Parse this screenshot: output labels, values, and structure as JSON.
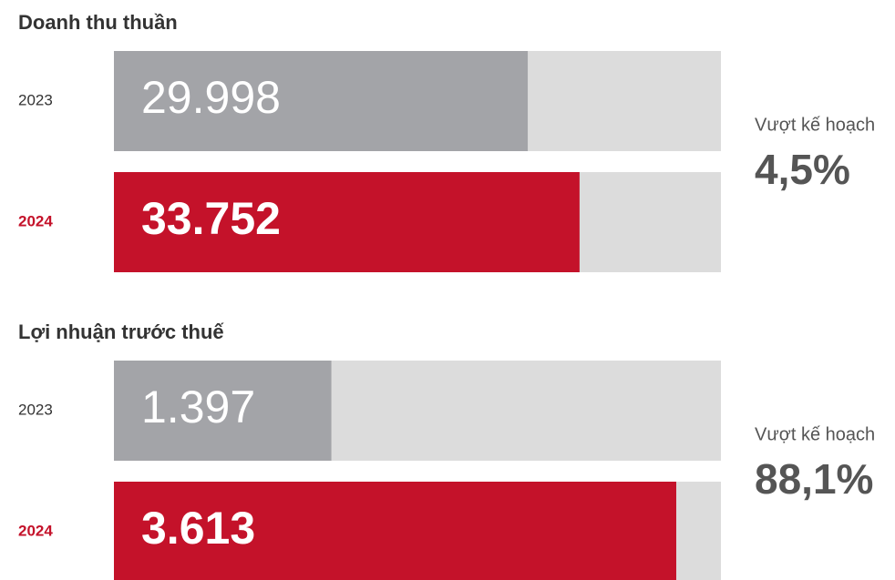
{
  "chart_data": [
    {
      "type": "bar",
      "orientation": "horizontal",
      "title": "Doanh thu thuần",
      "categories": [
        "2023",
        "2024"
      ],
      "values": [
        29998,
        33752
      ],
      "value_labels": [
        "29.998",
        "33.752"
      ],
      "colors": [
        "#a3a4a8",
        "#c4122a"
      ],
      "track_color": "#dcdcdc",
      "xlim": [
        0,
        44000
      ],
      "annotation": {
        "label": "Vượt kế hoạch",
        "text": "4,5%"
      }
    },
    {
      "type": "bar",
      "orientation": "horizontal",
      "title": "Lợi nhuận trước thuế",
      "categories": [
        "2023",
        "2024"
      ],
      "values": [
        1397,
        3613
      ],
      "value_labels": [
        "1.397",
        "3.613"
      ],
      "colors": [
        "#a3a4a8",
        "#c4122a"
      ],
      "track_color": "#dcdcdc",
      "xlim": [
        0,
        3900
      ],
      "annotation": {
        "label": "Vượt kế hoạch",
        "text": "88,1%"
      }
    }
  ]
}
